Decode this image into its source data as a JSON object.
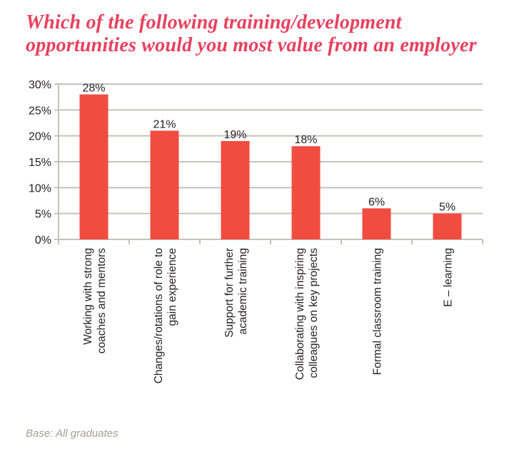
{
  "chart_data": {
    "type": "bar",
    "title": [
      "Which of the following training/development",
      "opportunities would you most value from an employer"
    ],
    "categories": [
      [
        "Working with strong",
        "coaches and mentors"
      ],
      [
        "Changes/rotations of role to",
        "gain experience"
      ],
      [
        "Support for further",
        "academic training"
      ],
      [
        "Collaborating with inspiring",
        "colleagues on key projects"
      ],
      [
        "Formal classroom training"
      ],
      [
        "E – learning"
      ]
    ],
    "values": [
      28,
      21,
      19,
      18,
      6,
      5
    ],
    "data_labels": [
      "28%",
      "21%",
      "19%",
      "18%",
      "6%",
      "5%"
    ],
    "yticks": [
      "0%",
      "5%",
      "10%",
      "15%",
      "20%",
      "25%",
      "30%"
    ],
    "ylim": [
      0,
      30
    ],
    "grid": true,
    "bar_color": "#f04c40",
    "grid_color": "#c8c1bb",
    "title_color": "#e8405e",
    "footnote": "Base: All graduates"
  }
}
